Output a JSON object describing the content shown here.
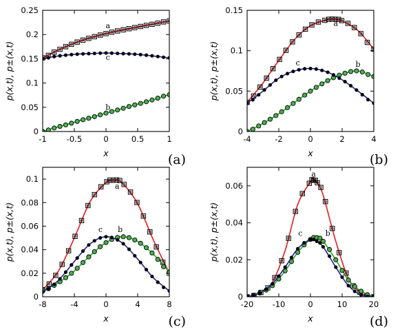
{
  "chart_data": [
    {
      "type": "line",
      "panel_label": "(a)",
      "xlabel": "x",
      "ylabel": "p(x,t),   p±(x,t)",
      "xlim": [
        -1,
        1
      ],
      "ylim": [
        0,
        0.25
      ],
      "xticks": [
        -1,
        -0.5,
        0,
        0.5,
        1
      ],
      "xtick_labels": [
        "-1",
        "-0.5",
        "0",
        "0.5",
        "1"
      ],
      "yticks": [
        0,
        0.05,
        0.1,
        0.15,
        0.2,
        0.25
      ],
      "ytick_labels": [
        "0",
        "0.05",
        "0.1",
        "0.15",
        "0.2",
        "0.25"
      ],
      "series": [
        {
          "label": "a",
          "line_color": "#e41a1c",
          "marker": "open-square",
          "x": [
            -1,
            -0.8,
            -0.6,
            -0.4,
            -0.2,
            0,
            0.2,
            0.4,
            0.6,
            0.8,
            1
          ],
          "y": [
            0.152,
            0.165,
            0.177,
            0.187,
            0.195,
            0.202,
            0.208,
            0.213,
            0.218,
            0.223,
            0.228
          ],
          "label_pos": [
            0.03,
            0.213
          ]
        },
        {
          "label": "b",
          "line_color": "#2ca02c",
          "marker": "filled-circle-green",
          "x": [
            -1,
            -0.8,
            -0.6,
            -0.4,
            -0.2,
            0,
            0.2,
            0.4,
            0.6,
            0.8,
            1
          ],
          "y": [
            0.0,
            0.008,
            0.015,
            0.023,
            0.03,
            0.038,
            0.045,
            0.053,
            0.06,
            0.068,
            0.076
          ],
          "label_pos": [
            0.03,
            0.045
          ]
        },
        {
          "label": "c",
          "line_color": "#1f1f9f",
          "marker": "filled-circle-black",
          "x": [
            -1,
            -0.8,
            -0.6,
            -0.4,
            -0.2,
            0,
            0.2,
            0.4,
            0.6,
            0.8,
            1
          ],
          "y": [
            0.15,
            0.155,
            0.158,
            0.16,
            0.161,
            0.162,
            0.161,
            0.16,
            0.158,
            0.155,
            0.152
          ],
          "label_pos": [
            0.03,
            0.148
          ]
        }
      ]
    },
    {
      "type": "line",
      "panel_label": "(b)",
      "xlabel": "x",
      "ylabel": "p(x,t),   p±(x,t)",
      "xlim": [
        -4,
        4
      ],
      "ylim": [
        0,
        0.15
      ],
      "xticks": [
        -4,
        -2,
        0,
        2,
        4
      ],
      "xtick_labels": [
        "-4",
        "-2",
        "0",
        "2",
        "4"
      ],
      "yticks": [
        0,
        0.05,
        0.1,
        0.15
      ],
      "ytick_labels": [
        "0",
        "0.05",
        "0.1",
        "0.15"
      ],
      "series": [
        {
          "label": "a",
          "line_color": "#e41a1c",
          "marker": "open-square",
          "x": [
            -4,
            -3,
            -2,
            -1,
            0,
            1,
            1.5,
            2,
            3,
            4
          ],
          "y": [
            0.036,
            0.06,
            0.088,
            0.114,
            0.131,
            0.138,
            0.139,
            0.137,
            0.125,
            0.102
          ],
          "label_pos": [
            1.6,
            0.131
          ]
        },
        {
          "label": "b",
          "line_color": "#2ca02c",
          "marker": "filled-circle-green",
          "x": [
            -4,
            -3,
            -2,
            -1,
            0,
            1,
            2,
            3,
            4
          ],
          "y": [
            0.0,
            0.01,
            0.022,
            0.036,
            0.05,
            0.062,
            0.071,
            0.075,
            0.068
          ],
          "label_pos": [
            3.0,
            0.08
          ]
        },
        {
          "label": "c",
          "line_color": "#1f1f9f",
          "marker": "filled-circle-black",
          "x": [
            -4,
            -3,
            -2,
            -1,
            0,
            1,
            2,
            3,
            4
          ],
          "y": [
            0.035,
            0.05,
            0.066,
            0.075,
            0.078,
            0.074,
            0.064,
            0.05,
            0.035
          ],
          "label_pos": [
            -0.8,
            0.082
          ]
        }
      ]
    },
    {
      "type": "line",
      "panel_label": "(c)",
      "xlabel": "x",
      "ylabel": "p(x,t),   p±(x,t)",
      "xlim": [
        -8,
        8
      ],
      "ylim": [
        0,
        0.11
      ],
      "xticks": [
        -8,
        -4,
        0,
        4,
        8
      ],
      "xtick_labels": [
        "-8",
        "-4",
        "0",
        "4",
        "8"
      ],
      "yticks": [
        0,
        0.02,
        0.04,
        0.06,
        0.08,
        0.1
      ],
      "ytick_labels": [
        "0",
        "0.02",
        "0.04",
        "0.06",
        "0.08",
        "0.1"
      ],
      "series": [
        {
          "label": "a",
          "line_color": "#e41a1c",
          "marker": "open-square",
          "x": [
            -8,
            -6,
            -4,
            -2,
            0,
            1,
            2,
            4,
            6,
            8
          ],
          "y": [
            0.006,
            0.022,
            0.05,
            0.081,
            0.097,
            0.099,
            0.097,
            0.079,
            0.048,
            0.02
          ],
          "label_pos": [
            1.4,
            0.092
          ]
        },
        {
          "label": "b",
          "line_color": "#2ca02c",
          "marker": "filled-circle-green",
          "x": [
            -8,
            -6,
            -4,
            -2,
            0,
            2,
            4,
            6,
            8
          ],
          "y": [
            0.005,
            0.012,
            0.022,
            0.035,
            0.046,
            0.051,
            0.047,
            0.036,
            0.021
          ],
          "label_pos": [
            1.8,
            0.055
          ]
        },
        {
          "label": "c",
          "line_color": "#1f1f9f",
          "marker": "filled-circle-black",
          "x": [
            -8,
            -6,
            -4,
            -2,
            0,
            2,
            4,
            6,
            8
          ],
          "y": [
            0.004,
            0.014,
            0.03,
            0.045,
            0.051,
            0.046,
            0.032,
            0.016,
            0.005
          ],
          "label_pos": [
            -0.7,
            0.055
          ]
        }
      ]
    },
    {
      "type": "line",
      "panel_label": "(d)",
      "xlabel": "x",
      "ylabel": "p(x,t),   p±(x,t)",
      "xlim": [
        -20,
        20
      ],
      "ylim": [
        0,
        0.07
      ],
      "xticks": [
        -20,
        -10,
        0,
        10,
        20
      ],
      "xtick_labels": [
        "-20",
        "-10",
        "0",
        "10",
        "20"
      ],
      "yticks": [
        0,
        0.02,
        0.04,
        0.06
      ],
      "ytick_labels": [
        "0",
        "0.02",
        "0.04",
        "0.06"
      ],
      "series": [
        {
          "label": "a",
          "line_color": "#e41a1c",
          "marker": "open-square",
          "x": [
            -20,
            -16,
            -12,
            -8,
            -4,
            0,
            1,
            2,
            4,
            8,
            12,
            16,
            20
          ],
          "y": [
            0.0,
            0.002,
            0.008,
            0.025,
            0.05,
            0.062,
            0.063,
            0.062,
            0.055,
            0.03,
            0.01,
            0.002,
            0.0
          ],
          "label_pos": [
            1.0,
            0.065
          ]
        },
        {
          "label": "b",
          "line_color": "#2ca02c",
          "marker": "filled-circle-green",
          "x": [
            -20,
            -16,
            -12,
            -8,
            -4,
            0,
            2,
            4,
            8,
            12,
            16,
            20
          ],
          "y": [
            0.0,
            0.002,
            0.006,
            0.014,
            0.024,
            0.031,
            0.032,
            0.03,
            0.02,
            0.009,
            0.003,
            0.0
          ],
          "label_pos": [
            5.5,
            0.033
          ]
        },
        {
          "label": "c",
          "line_color": "#1f1f9f",
          "marker": "filled-circle-black",
          "x": [
            -20,
            -16,
            -12,
            -8,
            -4,
            0,
            2,
            4,
            8,
            12,
            16,
            20
          ],
          "y": [
            0.0,
            0.002,
            0.007,
            0.016,
            0.026,
            0.031,
            0.03,
            0.027,
            0.016,
            0.006,
            0.001,
            0.0
          ],
          "label_pos": [
            -3.2,
            0.033
          ]
        }
      ]
    }
  ]
}
